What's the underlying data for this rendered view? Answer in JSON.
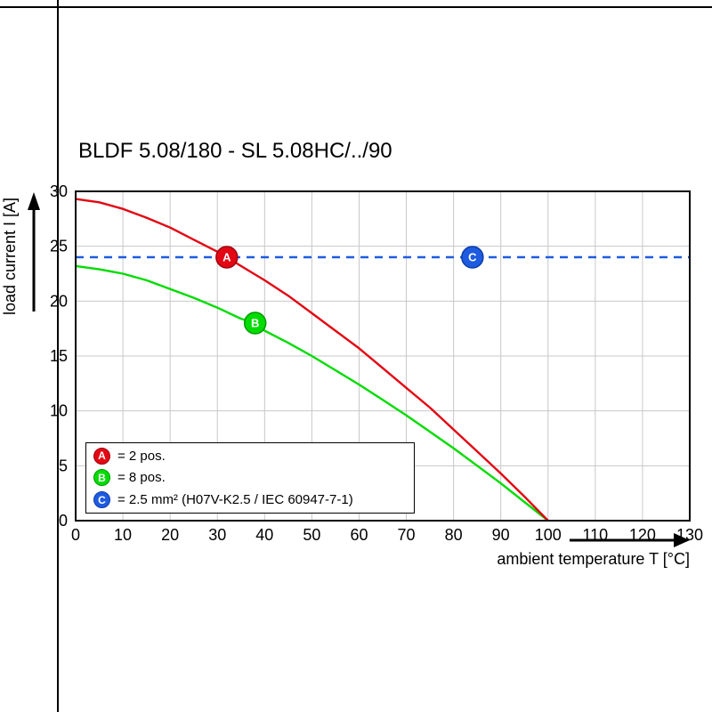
{
  "chart_data": {
    "type": "line",
    "title": "BLDF 5.08/180 - SL 5.08HC/../90",
    "xlabel": "ambient temperature T [°C]",
    "ylabel": "load current I [A]",
    "xlim": [
      0,
      130
    ],
    "ylim": [
      0,
      30
    ],
    "x_ticks": [
      0,
      10,
      20,
      30,
      40,
      50,
      60,
      70,
      80,
      90,
      100,
      110,
      120,
      130
    ],
    "y_ticks": [
      0,
      5,
      10,
      15,
      20,
      25,
      30
    ],
    "grid": true,
    "legend_position": "lower-left",
    "series": [
      {
        "name": "A",
        "legend_label": "= 2 pos.",
        "color": "#e30613",
        "stroke_dark": "#9d0410",
        "style": "solid",
        "marker": {
          "x": 32,
          "y": 24
        },
        "points": [
          [
            0,
            29.3
          ],
          [
            5,
            29.0
          ],
          [
            10,
            28.4
          ],
          [
            15,
            27.6
          ],
          [
            20,
            26.7
          ],
          [
            25,
            25.6
          ],
          [
            30,
            24.5
          ],
          [
            32,
            24.0
          ],
          [
            35,
            23.2
          ],
          [
            40,
            21.9
          ],
          [
            45,
            20.5
          ],
          [
            50,
            18.9
          ],
          [
            55,
            17.3
          ],
          [
            60,
            15.7
          ],
          [
            65,
            13.9
          ],
          [
            70,
            12.1
          ],
          [
            75,
            10.3
          ],
          [
            80,
            8.3
          ],
          [
            85,
            6.3
          ],
          [
            90,
            4.3
          ],
          [
            95,
            2.2
          ],
          [
            100,
            0
          ]
        ]
      },
      {
        "name": "B",
        "legend_label": "= 8 pos.",
        "color": "#00dc00",
        "stroke_dark": "#009a00",
        "style": "solid",
        "marker": {
          "x": 38,
          "y": 18
        },
        "points": [
          [
            0,
            23.2
          ],
          [
            5,
            22.9
          ],
          [
            10,
            22.5
          ],
          [
            15,
            21.9
          ],
          [
            20,
            21.1
          ],
          [
            25,
            20.3
          ],
          [
            30,
            19.4
          ],
          [
            35,
            18.4
          ],
          [
            38,
            18.0
          ],
          [
            40,
            17.3
          ],
          [
            45,
            16.2
          ],
          [
            50,
            15.0
          ],
          [
            55,
            13.7
          ],
          [
            60,
            12.4
          ],
          [
            65,
            11.0
          ],
          [
            70,
            9.6
          ],
          [
            75,
            8.1
          ],
          [
            80,
            6.6
          ],
          [
            85,
            5.0
          ],
          [
            90,
            3.4
          ],
          [
            95,
            1.7
          ],
          [
            100,
            0
          ]
        ]
      },
      {
        "name": "C",
        "legend_label": "= 2.5 mm² (H07V-K2.5 / IEC 60947-7-1)",
        "color": "#1e5be0",
        "stroke_dark": "#0d3da8",
        "style": "dashed",
        "marker": {
          "x": 84,
          "y": 24
        },
        "points": [
          [
            0,
            24
          ],
          [
            130,
            24
          ]
        ]
      }
    ],
    "grid_color": "#c8c8c8",
    "axis_color": "#000000"
  }
}
